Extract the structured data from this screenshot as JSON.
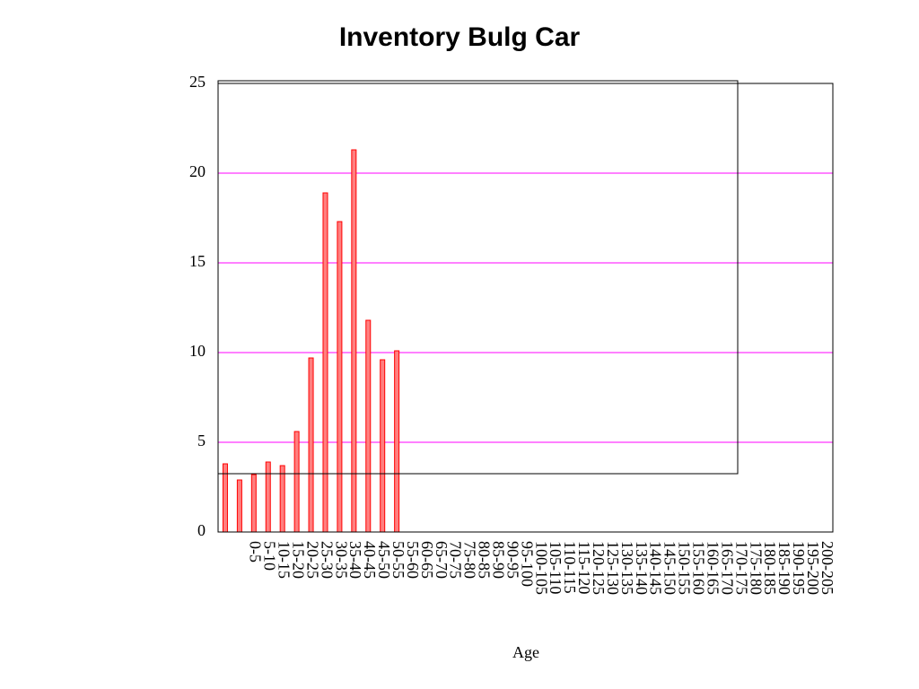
{
  "chart_data": {
    "type": "bar",
    "title": "Inventory Bulg Car",
    "xlabel": "Age",
    "categories": [
      null,
      null,
      "0-5",
      "5-10",
      "10-15",
      "15-20",
      "20-25",
      "25-30",
      "30-35",
      "35-40",
      "40-45",
      "45-50",
      "50-55",
      "55-60",
      "60-65",
      "65-70",
      "70-75",
      "75-80",
      "80-85",
      "85-90",
      "90-95",
      "95-100",
      "100-105",
      "105-110",
      "110-115",
      "115-120",
      "120-125",
      "125-130",
      "130-135",
      "135-140",
      "140-145",
      "145-150",
      "150-155",
      "155-160",
      "160-165",
      "165-170",
      "170-175",
      "175-180",
      "180-185",
      "185-190",
      "190-195",
      "195-200",
      "200-205"
    ],
    "values": [
      3.8,
      2.9,
      3.2,
      3.9,
      3.7,
      5.6,
      9.7,
      18.9,
      17.3,
      21.3,
      11.8,
      9.6,
      10.1,
      0,
      0,
      0,
      0,
      0,
      0,
      0,
      0,
      0,
      0,
      0,
      0,
      0,
      0,
      0,
      0,
      0,
      0,
      0,
      0,
      0,
      0,
      0,
      0,
      0,
      0,
      0,
      0,
      0,
      0
    ],
    "color": "#ff7f7f",
    "ylim": [
      0,
      25
    ],
    "yticks": [
      0,
      5,
      10,
      15,
      20,
      25
    ],
    "grid": true
  }
}
